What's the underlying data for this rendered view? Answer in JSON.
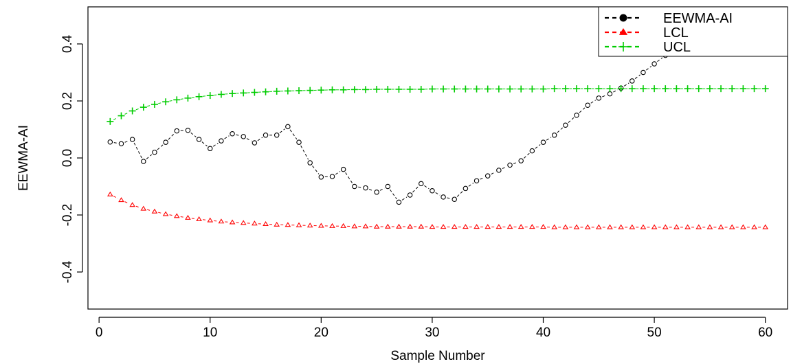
{
  "chart_data": {
    "type": "scatter",
    "xlabel": "Sample Number",
    "ylabel": "EEWMA-AI",
    "xlim": [
      -1,
      62
    ],
    "ylim": [
      -0.53,
      0.53
    ],
    "xticks": [
      0,
      10,
      20,
      30,
      40,
      50,
      60
    ],
    "xtick_labels": [
      "0",
      "10",
      "20",
      "30",
      "40",
      "50",
      "60"
    ],
    "yticks": [
      -0.4,
      -0.2,
      0.0,
      0.2,
      0.4
    ],
    "ytick_labels": [
      "-0.4",
      "-0.2",
      "0.0",
      "0.2",
      "0.4"
    ],
    "grid": false,
    "legend_position": "top-right",
    "x": [
      1,
      2,
      3,
      4,
      5,
      6,
      7,
      8,
      9,
      10,
      11,
      12,
      13,
      14,
      15,
      16,
      17,
      18,
      19,
      20,
      21,
      22,
      23,
      24,
      25,
      26,
      27,
      28,
      29,
      30,
      31,
      32,
      33,
      34,
      35,
      36,
      37,
      38,
      39,
      40,
      41,
      42,
      43,
      44,
      45,
      46,
      47,
      48,
      49,
      50,
      51,
      52,
      53,
      54,
      55,
      56,
      57,
      58,
      59,
      60
    ],
    "series": [
      {
        "name": "EEWMA-AI",
        "color": "#000000",
        "marker": "open-circle",
        "line": "dashed",
        "values": [
          0.056,
          0.05,
          0.065,
          -0.012,
          0.02,
          0.055,
          0.095,
          0.097,
          0.065,
          0.033,
          0.06,
          0.085,
          0.075,
          0.053,
          0.08,
          0.08,
          0.11,
          0.055,
          -0.017,
          -0.067,
          -0.065,
          -0.04,
          -0.1,
          -0.105,
          -0.12,
          -0.1,
          -0.155,
          -0.13,
          -0.09,
          -0.115,
          -0.137,
          -0.145,
          -0.107,
          -0.08,
          -0.063,
          -0.043,
          -0.025,
          -0.01,
          0.025,
          0.055,
          0.08,
          0.115,
          0.15,
          0.185,
          0.21,
          0.225,
          0.245,
          0.27,
          0.3,
          0.33,
          0.36,
          0.385,
          0.42,
          0.44,
          0.455,
          0.465,
          0.47,
          0.475,
          0.48,
          0.48
        ]
      },
      {
        "name": "LCL",
        "color": "#ff0000",
        "marker": "open-triangle",
        "line": "dashed",
        "values": [
          -0.128,
          -0.148,
          -0.165,
          -0.178,
          -0.188,
          -0.197,
          -0.204,
          -0.21,
          -0.215,
          -0.219,
          -0.223,
          -0.226,
          -0.228,
          -0.23,
          -0.232,
          -0.234,
          -0.235,
          -0.236,
          -0.237,
          -0.238,
          -0.239,
          -0.239,
          -0.24,
          -0.24,
          -0.241,
          -0.241,
          -0.241,
          -0.241,
          -0.241,
          -0.242,
          -0.242,
          -0.242,
          -0.242,
          -0.242,
          -0.242,
          -0.242,
          -0.242,
          -0.242,
          -0.242,
          -0.242,
          -0.243,
          -0.243,
          -0.243,
          -0.243,
          -0.243,
          -0.243,
          -0.243,
          -0.243,
          -0.243,
          -0.243,
          -0.243,
          -0.243,
          -0.243,
          -0.243,
          -0.243,
          -0.243,
          -0.243,
          -0.243,
          -0.243,
          -0.243
        ]
      },
      {
        "name": "UCL",
        "color": "#00cc00",
        "marker": "plus",
        "line": "dashed",
        "values": [
          0.128,
          0.148,
          0.165,
          0.178,
          0.188,
          0.197,
          0.204,
          0.21,
          0.215,
          0.219,
          0.223,
          0.226,
          0.228,
          0.23,
          0.232,
          0.234,
          0.235,
          0.236,
          0.237,
          0.238,
          0.239,
          0.239,
          0.24,
          0.24,
          0.241,
          0.241,
          0.241,
          0.241,
          0.241,
          0.242,
          0.242,
          0.242,
          0.242,
          0.242,
          0.242,
          0.242,
          0.242,
          0.242,
          0.242,
          0.242,
          0.243,
          0.243,
          0.243,
          0.243,
          0.243,
          0.243,
          0.243,
          0.243,
          0.243,
          0.243,
          0.243,
          0.243,
          0.243,
          0.243,
          0.243,
          0.243,
          0.243,
          0.243,
          0.243,
          0.243
        ]
      }
    ]
  }
}
